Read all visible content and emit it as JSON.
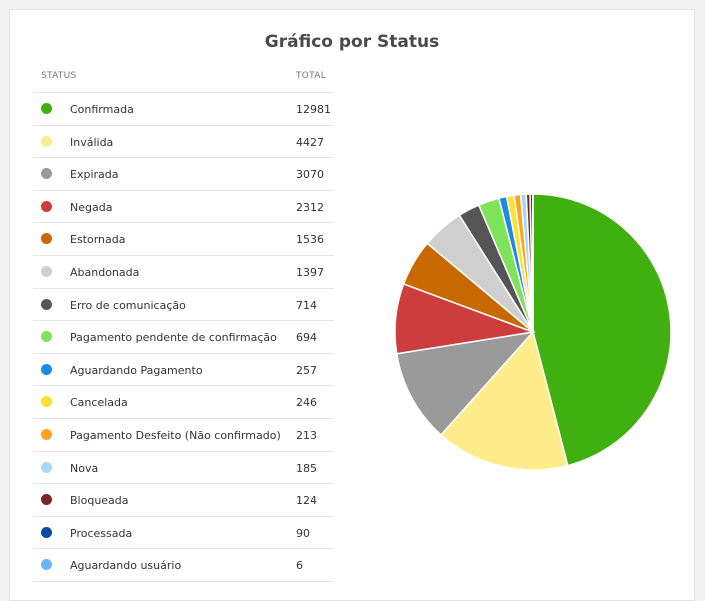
{
  "title": "Gráfico por Status",
  "table": {
    "col_status": "STATUS",
    "col_total": "TOTAL"
  },
  "chart_data": {
    "type": "pie",
    "title": "Gráfico por Status",
    "slices": [
      {
        "label": "Confirmada",
        "value": 12981,
        "color": "#40b010"
      },
      {
        "label": "Inválida",
        "value": 4427,
        "color": "#ffec8a"
      },
      {
        "label": "Expirada",
        "value": 3070,
        "color": "#9a9a9a"
      },
      {
        "label": "Negada",
        "value": 2312,
        "color": "#cc3d3d"
      },
      {
        "label": "Estornada",
        "value": 1536,
        "color": "#c76800"
      },
      {
        "label": "Abandonada",
        "value": 1397,
        "color": "#cfcfcf"
      },
      {
        "label": "Erro de comunicação",
        "value": 714,
        "color": "#555555"
      },
      {
        "label": "Pagamento pendente de confirmação",
        "value": 694,
        "color": "#7ee35a"
      },
      {
        "label": "Aguardando Pagamento",
        "value": 257,
        "color": "#1e88e5"
      },
      {
        "label": "Cancelada",
        "value": 246,
        "color": "#ffe033"
      },
      {
        "label": "Pagamento Desfeito (Não confirmado)",
        "value": 213,
        "color": "#ffa31f"
      },
      {
        "label": "Nova",
        "value": 185,
        "color": "#a7d8f7"
      },
      {
        "label": "Bloqueada",
        "value": 124,
        "color": "#7a2424"
      },
      {
        "label": "Processada",
        "value": 90,
        "color": "#0d47a1"
      },
      {
        "label": "Aguardando usuário",
        "value": 6,
        "color": "#6cb4f5"
      }
    ]
  }
}
